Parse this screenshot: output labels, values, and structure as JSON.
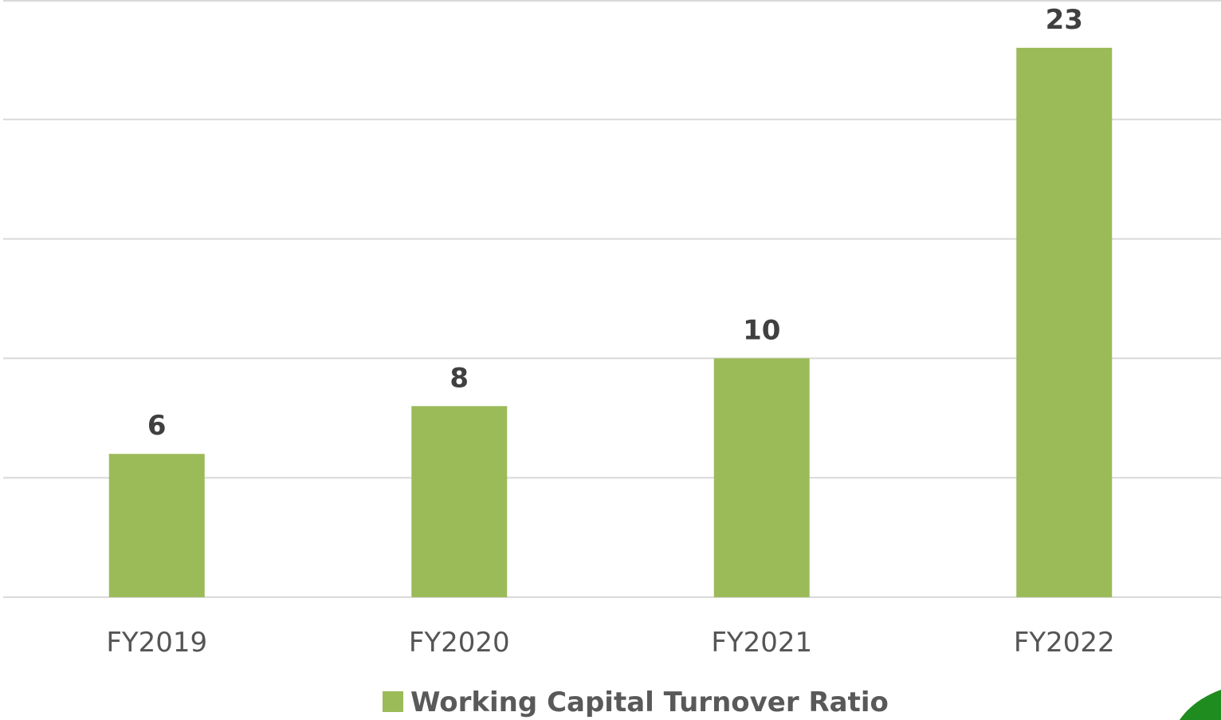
{
  "chart_data": {
    "type": "bar",
    "categories": [
      "FY2019",
      "FY2020",
      "FY2021",
      "FY2022"
    ],
    "series": [
      {
        "name": "Working Capital Turnover Ratio",
        "values": [
          6,
          8,
          10,
          23
        ]
      }
    ],
    "data_labels": [
      "6",
      "8",
      "10",
      "23"
    ],
    "ylim": [
      0,
      25
    ],
    "gridlines": [
      0,
      5,
      10,
      15,
      20,
      25
    ],
    "grid": true,
    "legend": "bottom-center",
    "colors": {
      "bar": "#9bbb59",
      "grid": "#d9d9d9",
      "decor": "#1e8c1e"
    }
  }
}
